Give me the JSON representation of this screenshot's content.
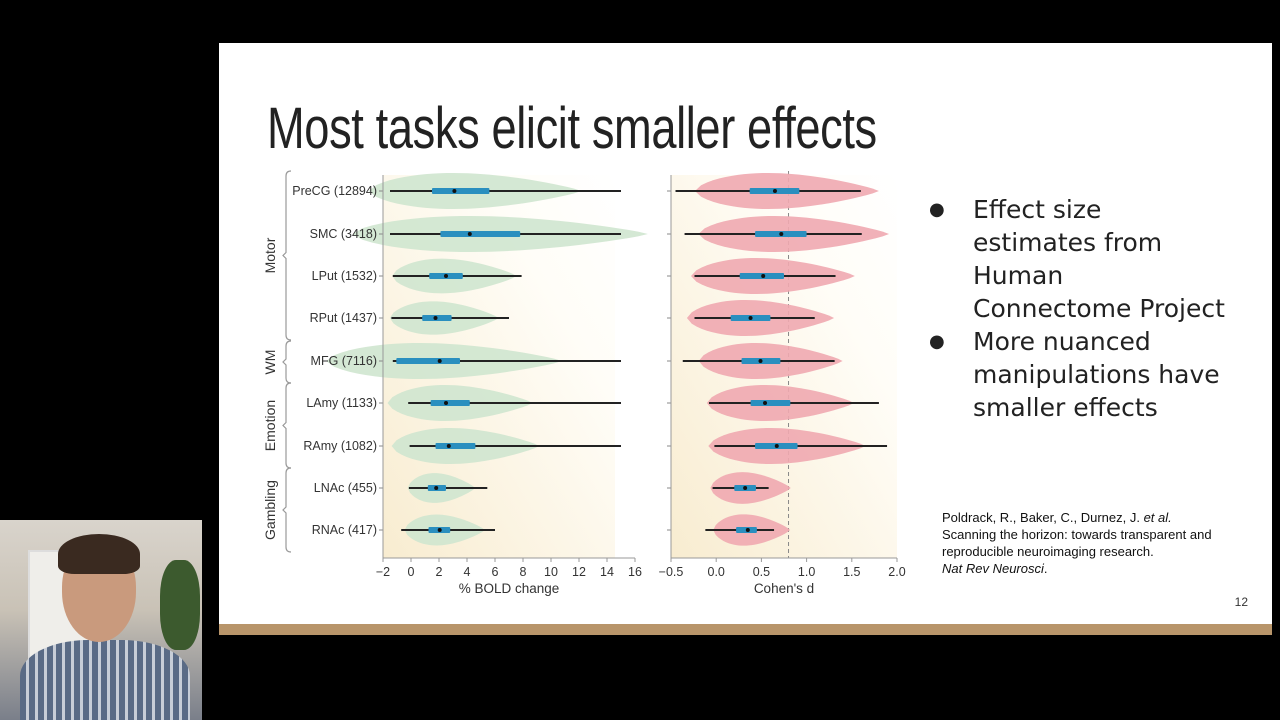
{
  "slide": {
    "title": "Most tasks elicit smaller effects",
    "bullets": [
      "Effect size estimates from Human Connectome Project",
      "More nuanced manipulations have smaller effects"
    ],
    "citation": {
      "authors": "Poldrack, R., Baker, C., Durnez, J. ",
      "etal": "et al.",
      "title": "Scanning the horizon: towards transparent and reproducible neuroimaging research.",
      "journal": "Nat Rev Neurosci",
      "end": "."
    },
    "page_number": "12",
    "accent_bar_color": "#b8956a"
  },
  "chart_data": [
    {
      "type": "violin",
      "xlabel": "% BOLD change",
      "xlim": [
        -2,
        16
      ],
      "xticks": [
        "−2",
        "0",
        "2",
        "4",
        "6",
        "8",
        "10",
        "12",
        "14",
        "16"
      ],
      "tick_values": [
        -2,
        0,
        2,
        4,
        6,
        8,
        10,
        12,
        14,
        16
      ],
      "color": "#cfe6cf",
      "box_color": "#2a8fbf",
      "groups": [
        {
          "name": "Motor",
          "rows": [
            0,
            1,
            2,
            3
          ]
        },
        {
          "name": "WM",
          "rows": [
            4
          ]
        },
        {
          "name": "Emotion",
          "rows": [
            5,
            6
          ]
        },
        {
          "name": "Gambling",
          "rows": [
            7,
            8
          ]
        }
      ],
      "categories": [
        "PreCG (12894)",
        "SMC (3418)",
        "LPut (1532)",
        "RPut (1437)",
        "MFG (7116)",
        "LAmy (1133)",
        "RAmy (1082)",
        "LNAc (455)",
        "RNAc (417)"
      ],
      "rows": [
        {
          "min": -1.5,
          "q1": 1.5,
          "median": 3.1,
          "q3": 5.6,
          "max": 15
        },
        {
          "min": -1.5,
          "q1": 2.1,
          "median": 4.2,
          "q3": 7.8,
          "max": 15
        },
        {
          "min": -1.3,
          "q1": 1.3,
          "median": 2.5,
          "q3": 3.7,
          "max": 7.9
        },
        {
          "min": -1.4,
          "q1": 0.8,
          "median": 1.75,
          "q3": 2.9,
          "max": 7.0
        },
        {
          "min": -1.3,
          "q1": -1.05,
          "median": 2.05,
          "q3": 3.5,
          "max": 15
        },
        {
          "min": -0.2,
          "q1": 1.4,
          "median": 2.5,
          "q3": 4.2,
          "max": 15
        },
        {
          "min": -0.1,
          "q1": 1.75,
          "median": 2.7,
          "q3": 4.6,
          "max": 15
        },
        {
          "min": -0.15,
          "q1": 1.2,
          "median": 1.8,
          "q3": 2.5,
          "max": 5.45
        },
        {
          "min": -0.7,
          "q1": 1.25,
          "median": 2.05,
          "q3": 2.8,
          "max": 6.0
        }
      ]
    },
    {
      "type": "violin",
      "xlabel": "Cohen's d",
      "xlim": [
        -0.5,
        2.0
      ],
      "xticks": [
        "−0.5",
        "0.0",
        "0.5",
        "1.0",
        "1.5",
        "2.0"
      ],
      "tick_values": [
        -0.5,
        0,
        0.5,
        1.0,
        1.5,
        2.0
      ],
      "reference_line": 0.8,
      "color": "#f0a9b0",
      "box_color": "#2a8fbf",
      "rows": [
        {
          "min": -0.45,
          "q1": 0.37,
          "median": 0.65,
          "q3": 0.92,
          "max": 1.6
        },
        {
          "min": -0.35,
          "q1": 0.43,
          "median": 0.72,
          "q3": 1.0,
          "max": 1.61
        },
        {
          "min": -0.24,
          "q1": 0.26,
          "median": 0.52,
          "q3": 0.75,
          "max": 1.32
        },
        {
          "min": -0.24,
          "q1": 0.16,
          "median": 0.38,
          "q3": 0.6,
          "max": 1.09
        },
        {
          "min": -0.37,
          "q1": 0.28,
          "median": 0.49,
          "q3": 0.71,
          "max": 1.31
        },
        {
          "min": -0.08,
          "q1": 0.38,
          "median": 0.54,
          "q3": 0.82,
          "max": 1.8
        },
        {
          "min": -0.02,
          "q1": 0.43,
          "median": 0.67,
          "q3": 0.9,
          "max": 1.89
        },
        {
          "min": -0.04,
          "q1": 0.2,
          "median": 0.32,
          "q3": 0.44,
          "max": 0.58
        },
        {
          "min": -0.12,
          "q1": 0.22,
          "median": 0.35,
          "q3": 0.45,
          "max": 0.64
        }
      ]
    }
  ]
}
